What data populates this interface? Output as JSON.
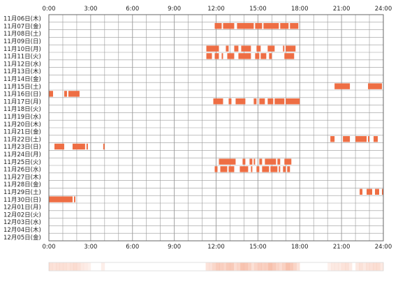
{
  "chart_data": {
    "type": "heatmap",
    "title": "",
    "xlabel": "",
    "ylabel": "",
    "x_unit": "hour",
    "xlim": [
      0,
      24
    ],
    "x_ticks": [
      "0:00",
      "3:00",
      "6:00",
      "9:00",
      "12:00",
      "15:00",
      "18:00",
      "21:00",
      "24:00"
    ],
    "grid": true,
    "colors": {
      "active": "#ee6e44",
      "grid": "#999999",
      "frame": "#666666",
      "density": "#f4a68a"
    },
    "rows": [
      {
        "label": "11月06日(木)",
        "intervals": []
      },
      {
        "label": "11月07日(金)",
        "intervals": [
          [
            11.9,
            12.4
          ],
          [
            12.5,
            13.3
          ],
          [
            13.5,
            14.7
          ],
          [
            14.8,
            15.3
          ],
          [
            15.4,
            16.5
          ],
          [
            16.6,
            17.2
          ],
          [
            17.3,
            17.9
          ]
        ]
      },
      {
        "label": "11月08日(土)",
        "intervals": []
      },
      {
        "label": "11月09日(日)",
        "intervals": []
      },
      {
        "label": "11月10日(月)",
        "intervals": [
          [
            11.3,
            12.2
          ],
          [
            12.7,
            12.9
          ],
          [
            13.3,
            13.6
          ],
          [
            13.8,
            14.5
          ],
          [
            14.9,
            15.2
          ],
          [
            15.7,
            16.2
          ],
          [
            16.8,
            16.9
          ],
          [
            17.0,
            17.7
          ]
        ]
      },
      {
        "label": "11月11日(火)",
        "intervals": [
          [
            11.3,
            11.7
          ],
          [
            11.9,
            12.2
          ],
          [
            12.4,
            12.5
          ],
          [
            12.8,
            13.3
          ],
          [
            13.6,
            14.5
          ],
          [
            14.8,
            15.1
          ],
          [
            15.2,
            15.6
          ],
          [
            15.8,
            16.0
          ],
          [
            16.9,
            17.6
          ]
        ]
      },
      {
        "label": "11月12日(水)",
        "intervals": []
      },
      {
        "label": "11月13日(木)",
        "intervals": []
      },
      {
        "label": "11月14日(金)",
        "intervals": []
      },
      {
        "label": "11月15日(土)",
        "intervals": [
          [
            20.5,
            21.6
          ],
          [
            22.9,
            23.9
          ]
        ]
      },
      {
        "label": "11月16日(日)",
        "intervals": [
          [
            0.0,
            0.3
          ],
          [
            1.1,
            1.3
          ],
          [
            1.4,
            2.2
          ]
        ]
      },
      {
        "label": "11月17日(月)",
        "intervals": [
          [
            11.8,
            12.5
          ],
          [
            12.9,
            13.1
          ],
          [
            13.4,
            14.1
          ],
          [
            14.7,
            14.9
          ],
          [
            15.1,
            15.5
          ],
          [
            15.7,
            16.1
          ],
          [
            16.2,
            16.9
          ],
          [
            17.0,
            18.0
          ]
        ]
      },
      {
        "label": "11月18日(火)",
        "intervals": []
      },
      {
        "label": "11月19日(水)",
        "intervals": []
      },
      {
        "label": "11月20日(木)",
        "intervals": []
      },
      {
        "label": "11月21日(金)",
        "intervals": []
      },
      {
        "label": "11月22日(土)",
        "intervals": [
          [
            20.2,
            20.5
          ],
          [
            21.1,
            21.6
          ],
          [
            22.0,
            22.8
          ],
          [
            22.9,
            23.0
          ],
          [
            23.3,
            23.6
          ]
        ]
      },
      {
        "label": "11月23日(日)",
        "intervals": [
          [
            0.4,
            1.1
          ],
          [
            1.7,
            2.6
          ],
          [
            2.7,
            2.8
          ],
          [
            3.9,
            4.0
          ]
        ]
      },
      {
        "label": "11月24日(月)",
        "intervals": []
      },
      {
        "label": "11月25日(火)",
        "intervals": [
          [
            12.2,
            13.4
          ],
          [
            13.9,
            14.1
          ],
          [
            14.4,
            14.6
          ],
          [
            14.7,
            14.8
          ],
          [
            15.1,
            15.3
          ],
          [
            15.5,
            16.3
          ],
          [
            16.4,
            16.6
          ],
          [
            16.9,
            17.4
          ]
        ]
      },
      {
        "label": "11月26日(水)",
        "intervals": [
          [
            11.9,
            12.1
          ],
          [
            12.3,
            12.8
          ],
          [
            12.9,
            13.3
          ],
          [
            13.7,
            14.3
          ],
          [
            14.5,
            14.6
          ],
          [
            14.9,
            15.1
          ],
          [
            15.3,
            15.8
          ],
          [
            15.9,
            16.4
          ],
          [
            16.5,
            16.6
          ],
          [
            16.8,
            17.0
          ],
          [
            17.1,
            17.3
          ]
        ]
      },
      {
        "label": "11月27日(木)",
        "intervals": []
      },
      {
        "label": "11月28日(金)",
        "intervals": []
      },
      {
        "label": "11月29日(土)",
        "intervals": [
          [
            22.3,
            22.5
          ],
          [
            22.8,
            23.2
          ],
          [
            23.4,
            23.7
          ],
          [
            23.9,
            24.0
          ]
        ]
      },
      {
        "label": "11月30日(日)",
        "intervals": [
          [
            0.0,
            1.7
          ],
          [
            1.8,
            1.9
          ]
        ]
      },
      {
        "label": "12月01日(月)",
        "intervals": []
      },
      {
        "label": "12月02日(火)",
        "intervals": []
      },
      {
        "label": "12月03日(水)",
        "intervals": []
      },
      {
        "label": "12月04日(木)",
        "intervals": []
      },
      {
        "label": "12月05日(金)",
        "intervals": []
      }
    ]
  }
}
